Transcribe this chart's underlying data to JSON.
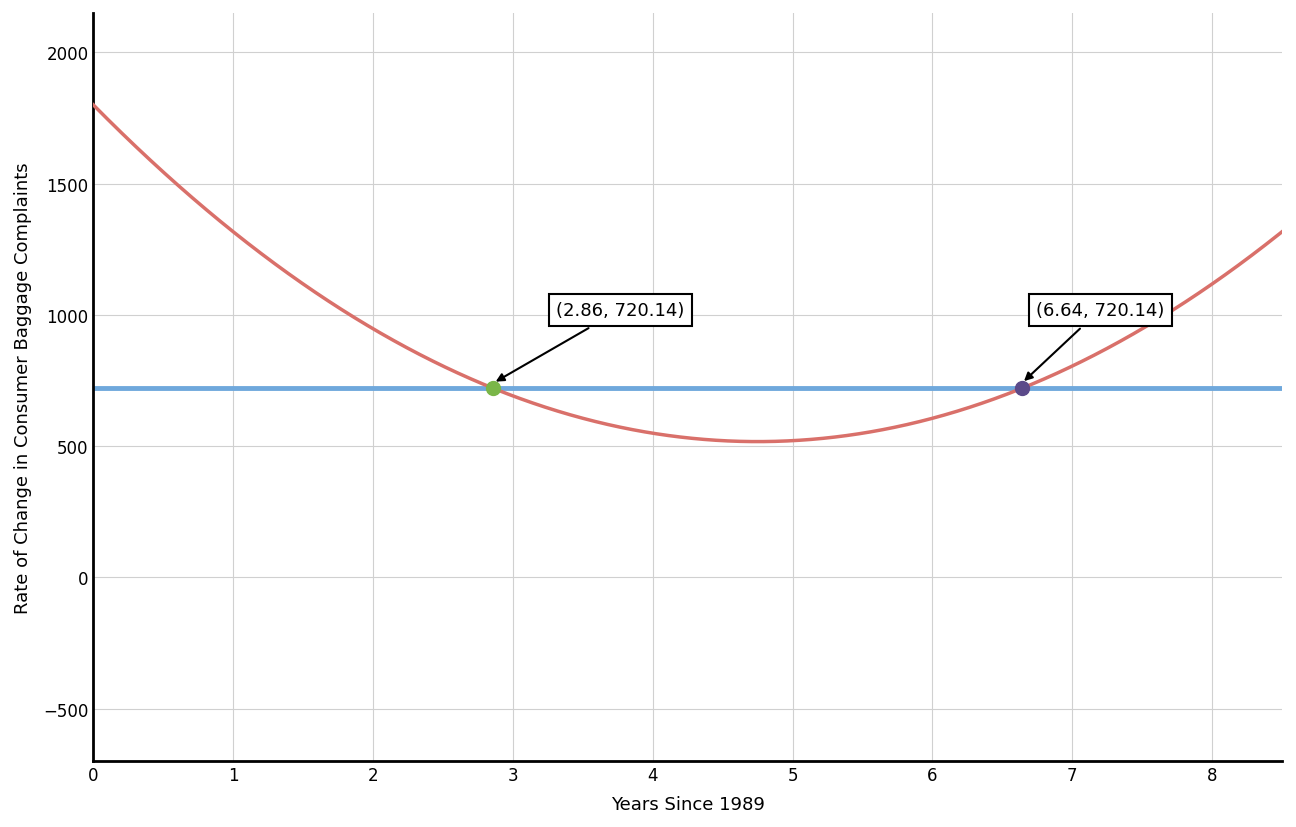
{
  "curve_color": "#d9706a",
  "line_color": "#6fa8dc",
  "line_y": 720.14,
  "point1": [
    2.86,
    720.14
  ],
  "point2": [
    6.64,
    720.14
  ],
  "point1_color": "#7ab648",
  "point2_color": "#5b4a8a",
  "xlabel": "Years Since 1989",
  "ylabel": "Rate of Change in Consumer Baggage Complaints",
  "xlim": [
    0,
    8.5
  ],
  "ylim": [
    -700,
    2150
  ],
  "yticks": [
    -500,
    0,
    500,
    1000,
    1500,
    2000
  ],
  "xticks": [
    0,
    1,
    2,
    3,
    4,
    5,
    6,
    7,
    8
  ],
  "background_color": "#ffffff",
  "grid_color": "#d0d0d0",
  "coeff_a": 56.86,
  "coeff_b": -540.17,
  "coeff_c": 1800.0,
  "annotation_fontsize": 13,
  "axis_label_fontsize": 13,
  "tick_fontsize": 12,
  "ann1_text": "(2.86, 720.14)",
  "ann2_text": "(6.64, 720.14)"
}
